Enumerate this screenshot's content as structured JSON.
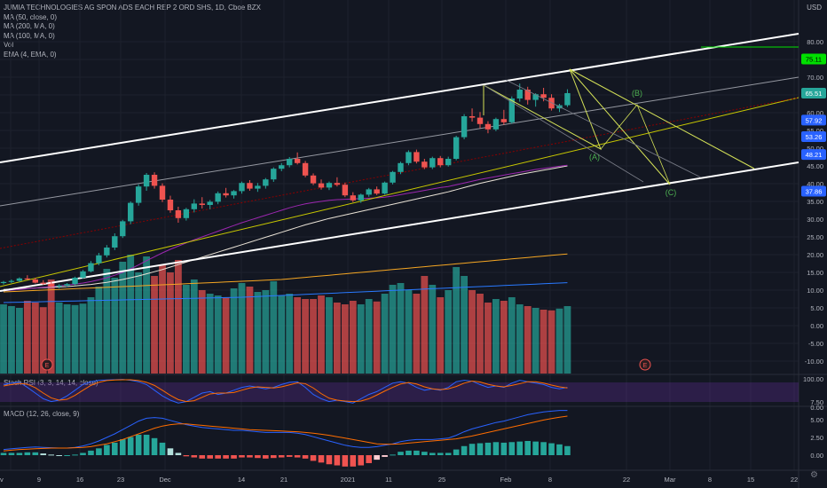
{
  "legend": {
    "title": "JUMIA TECHNOLOGIES AG SPON ADS EACH REP 2 ORD SHS, 1D, Cboe BZX",
    "indicators": [
      "MA (50, close, 0)",
      "MA (200, MA, 0)",
      "MA (100, MA, 0)",
      "Vol",
      "EMA (4, EMA, 0)"
    ]
  },
  "currency": "USD",
  "colors": {
    "up": "#26a69a",
    "down": "#ef5350",
    "bg": "#131722",
    "grid": "#1e222d",
    "axis_text": "#b2b5be"
  },
  "price_axis": {
    "ticks": [
      "80.00",
      "75.00",
      "70.00",
      "65.00",
      "60.00",
      "55.00",
      "50.00",
      "45.00",
      "40.00",
      "35.00",
      "30.00",
      "25.00",
      "20.00",
      "15.00",
      "10.00",
      "5.00",
      "0.00",
      "-5.00",
      "-10.00"
    ],
    "badges": [
      {
        "value": "75.11",
        "color": "#00e000",
        "text_color": "#000000"
      },
      {
        "value": "65.51",
        "color": "#26a69a",
        "text_color": "#ffffff"
      },
      {
        "value": "57.92",
        "color": "#2962ff",
        "text_color": "#ffffff"
      },
      {
        "value": "53.26",
        "color": "#2962ff",
        "text_color": "#ffffff"
      },
      {
        "value": "48.21",
        "color": "#2962ff",
        "text_color": "#ffffff"
      },
      {
        "value": "37.86",
        "color": "#2962ff",
        "text_color": "#ffffff"
      }
    ]
  },
  "stoch": {
    "label": "Stoch RSI (3, 3, 14, 14, close)",
    "ticks": [
      "100.00",
      "0.00"
    ]
  },
  "macd": {
    "label": "MACD (12, 26, close, 9)",
    "ticks": [
      "7.50",
      "5.00",
      "2.50",
      "0.00"
    ]
  },
  "time_axis": [
    "v",
    "9",
    "16",
    "23",
    "Dec",
    "14",
    "21",
    "2021",
    "11",
    "25",
    "Feb",
    "8",
    "22",
    "Mar",
    "8",
    "15",
    "22"
  ],
  "events": [
    "E",
    "E"
  ],
  "waves": [
    "(A)",
    "(B)",
    "(C)"
  ],
  "chart_data": {
    "type": "candlestick",
    "ohlc": [
      [
        12.0,
        12.6,
        11.6,
        12.3
      ],
      [
        12.3,
        13.0,
        12.0,
        12.6
      ],
      [
        12.6,
        13.6,
        12.3,
        13.3
      ],
      [
        13.3,
        14.2,
        12.9,
        13.0
      ],
      [
        13.0,
        13.5,
        11.9,
        12.1
      ],
      [
        12.1,
        12.8,
        11.5,
        11.8
      ],
      [
        11.8,
        12.4,
        10.8,
        11.0
      ],
      [
        11.0,
        11.7,
        10.5,
        11.3
      ],
      [
        11.3,
        12.0,
        10.9,
        11.7
      ],
      [
        11.7,
        13.8,
        11.4,
        13.5
      ],
      [
        13.5,
        15.7,
        13.2,
        15.3
      ],
      [
        15.3,
        18.2,
        15.0,
        17.6
      ],
      [
        17.6,
        20.5,
        17.0,
        19.8
      ],
      [
        19.8,
        22.7,
        19.2,
        22.0
      ],
      [
        22.0,
        26.0,
        21.3,
        25.2
      ],
      [
        25.2,
        29.8,
        24.7,
        29.4
      ],
      [
        29.4,
        35.0,
        28.6,
        34.6
      ],
      [
        34.6,
        39.8,
        33.8,
        39.2
      ],
      [
        39.2,
        43.0,
        38.0,
        42.5
      ],
      [
        42.5,
        43.2,
        38.6,
        39.4
      ],
      [
        39.4,
        40.1,
        34.8,
        35.5
      ],
      [
        35.5,
        36.6,
        31.8,
        32.5
      ],
      [
        32.5,
        33.5,
        29.0,
        30.3
      ],
      [
        30.3,
        33.2,
        29.6,
        32.8
      ],
      [
        32.8,
        35.6,
        31.9,
        34.4
      ],
      [
        34.4,
        36.2,
        33.0,
        34.0
      ],
      [
        34.0,
        35.4,
        32.8,
        34.9
      ],
      [
        34.9,
        37.8,
        34.2,
        37.3
      ],
      [
        37.3,
        38.8,
        36.1,
        36.7
      ],
      [
        36.7,
        38.2,
        35.8,
        37.9
      ],
      [
        37.9,
        40.6,
        37.2,
        40.2
      ],
      [
        40.2,
        41.0,
        38.0,
        38.6
      ],
      [
        38.6,
        40.2,
        37.7,
        39.4
      ],
      [
        39.4,
        41.6,
        38.6,
        41.2
      ],
      [
        41.2,
        44.6,
        40.5,
        44.2
      ],
      [
        44.2,
        45.8,
        43.5,
        45.2
      ],
      [
        45.2,
        47.5,
        44.6,
        47.0
      ],
      [
        47.0,
        48.8,
        45.4,
        45.8
      ],
      [
        45.8,
        46.4,
        41.8,
        42.3
      ],
      [
        42.3,
        42.9,
        39.6,
        40.1
      ],
      [
        40.1,
        41.2,
        38.3,
        38.9
      ],
      [
        38.9,
        40.6,
        38.2,
        40.2
      ],
      [
        40.2,
        41.8,
        39.2,
        39.7
      ],
      [
        39.7,
        40.3,
        36.2,
        36.7
      ],
      [
        36.7,
        37.6,
        34.8,
        35.3
      ],
      [
        35.3,
        37.2,
        34.6,
        36.9
      ],
      [
        36.9,
        38.8,
        36.3,
        38.4
      ],
      [
        38.4,
        39.2,
        36.8,
        37.2
      ],
      [
        37.2,
        40.6,
        36.9,
        40.3
      ],
      [
        40.3,
        43.6,
        39.8,
        43.3
      ],
      [
        43.3,
        46.2,
        42.7,
        45.8
      ],
      [
        45.8,
        49.4,
        45.2,
        48.9
      ],
      [
        48.9,
        49.6,
        45.7,
        46.2
      ],
      [
        46.2,
        47.0,
        44.1,
        44.6
      ],
      [
        44.6,
        47.6,
        44.1,
        47.2
      ],
      [
        47.2,
        47.8,
        44.6,
        45.2
      ],
      [
        45.2,
        47.6,
        44.8,
        47.0
      ],
      [
        47.0,
        53.5,
        46.6,
        53.1
      ],
      [
        53.1,
        59.6,
        52.5,
        59.0
      ],
      [
        59.0,
        61.2,
        57.5,
        58.6
      ],
      [
        58.6,
        60.2,
        55.6,
        56.8
      ],
      [
        56.8,
        57.6,
        54.2,
        55.3
      ],
      [
        55.3,
        58.6,
        54.8,
        58.2
      ],
      [
        58.2,
        60.8,
        56.6,
        57.3
      ],
      [
        57.3,
        64.6,
        56.9,
        64.0
      ],
      [
        64.0,
        68.2,
        63.1,
        66.5
      ],
      [
        66.5,
        67.3,
        62.3,
        63.6
      ],
      [
        63.6,
        65.5,
        61.7,
        65.2
      ],
      [
        65.2,
        67.0,
        63.2,
        64.2
      ],
      [
        64.2,
        65.2,
        60.6,
        61.2
      ],
      [
        61.2,
        62.5,
        60.2,
        62.1
      ],
      [
        62.1,
        66.6,
        61.6,
        65.51
      ]
    ],
    "volume": [
      4.0,
      3.5,
      3.0,
      5.0,
      4.5,
      3.2,
      11.0,
      4.5,
      4.0,
      3.8,
      4.2,
      6.0,
      9.0,
      14.0,
      11.5,
      16.0,
      18.0,
      13.0,
      17.5,
      12.0,
      15.0,
      13.0,
      16.5,
      9.5,
      11.0,
      8.0,
      7.0,
      6.5,
      6.0,
      8.5,
      10.0,
      9.0,
      7.5,
      8.0,
      10.5,
      6.5,
      7.0,
      6.0,
      5.5,
      5.5,
      6.5,
      6.0,
      4.5,
      4.0,
      5.0,
      4.0,
      5.5,
      4.8,
      7.0,
      9.5,
      10.0,
      8.0,
      7.0,
      12.0,
      9.5,
      6.0,
      8.0,
      14.5,
      12.0,
      8.0,
      7.0,
      4.5,
      5.5,
      5.0,
      6.0,
      4.0,
      3.5,
      3.0,
      2.5,
      2.3,
      2.8,
      3.5
    ],
    "ma_sets": {
      "ma50": [
        10.2,
        10.3,
        10.4,
        10.5,
        10.6,
        10.7,
        10.8,
        10.9,
        11.0,
        11.2,
        11.4,
        11.6,
        11.9,
        12.2,
        12.6,
        13.0,
        13.5,
        14.0,
        14.6,
        15.2,
        15.8,
        16.5,
        17.2,
        17.9,
        18.6,
        19.3,
        20.0,
        20.7,
        21.4,
        22.1,
        22.8,
        23.5,
        24.2,
        24.9,
        25.6,
        26.3,
        27.0,
        27.7,
        28.4,
        29.0,
        29.6,
        30.2,
        30.7,
        31.2,
        31.7,
        32.2,
        32.7,
        33.2,
        33.7,
        34.2,
        34.7,
        35.2,
        35.7,
        36.2,
        36.7,
        37.2,
        37.7,
        38.3,
        38.9,
        39.5,
        40.1,
        40.6,
        41.1,
        41.6,
        42.1,
        42.6,
        43.0,
        43.4,
        43.8,
        44.2,
        44.6,
        45.0
      ],
      "ma100": [
        9.5,
        9.6,
        9.7,
        9.8,
        9.9,
        10.0,
        10.1,
        10.2,
        10.3,
        10.4,
        10.5,
        10.6,
        10.7,
        10.8,
        10.9,
        11.0,
        11.1,
        11.2,
        11.3,
        11.4,
        11.5,
        11.6,
        11.7,
        11.8,
        11.9,
        12.0,
        12.1,
        12.2,
        12.3,
        12.4,
        12.5,
        12.6,
        12.7,
        12.8,
        12.9,
        13.0,
        13.2,
        13.4,
        13.6,
        13.8,
        14.0,
        14.2,
        14.4,
        14.6,
        14.8,
        15.0,
        15.2,
        15.4,
        15.6,
        15.8,
        16.0,
        16.2,
        16.4,
        16.6,
        16.8,
        17.0,
        17.2,
        17.4,
        17.6,
        17.8,
        18.0,
        18.2,
        18.4,
        18.6,
        18.8,
        19.0,
        19.2,
        19.4,
        19.6,
        19.8,
        20.0,
        20.2
      ],
      "ma200": [
        6.5,
        6.55,
        6.6,
        6.65,
        6.7,
        6.75,
        6.8,
        6.85,
        6.9,
        6.95,
        7.0,
        7.05,
        7.1,
        7.15,
        7.2,
        7.25,
        7.3,
        7.35,
        7.4,
        7.45,
        7.5,
        7.55,
        7.6,
        7.65,
        7.7,
        7.75,
        7.8,
        7.85,
        7.9,
        7.95,
        8.0,
        8.1,
        8.2,
        8.3,
        8.4,
        8.5,
        8.6,
        8.7,
        8.8,
        8.9,
        9.0,
        9.1,
        9.2,
        9.3,
        9.4,
        9.5,
        9.6,
        9.7,
        9.8,
        9.9,
        10.0,
        10.1,
        10.2,
        10.3,
        10.4,
        10.5,
        10.6,
        10.7,
        10.8,
        10.9,
        11.0,
        11.1,
        11.2,
        11.3,
        11.4,
        11.5,
        11.6,
        11.7,
        11.8,
        11.9,
        12.0,
        12.1
      ],
      "ema": [
        9.8,
        10.0,
        10.2,
        10.4,
        10.6,
        10.8,
        11.0,
        11.2,
        11.4,
        11.7,
        12.0,
        12.4,
        12.9,
        13.5,
        14.2,
        15.0,
        16.0,
        17.1,
        18.3,
        19.4,
        20.5,
        21.5,
        22.4,
        23.3,
        24.2,
        25.0,
        25.8,
        26.6,
        27.4,
        28.2,
        29.0,
        29.7,
        30.4,
        31.1,
        31.8,
        32.5,
        33.2,
        33.8,
        34.3,
        34.7,
        35.0,
        35.3,
        35.5,
        35.6,
        35.7,
        35.8,
        35.9,
        36.0,
        36.2,
        36.5,
        36.9,
        37.3,
        37.7,
        38.1,
        38.5,
        38.9,
        39.2,
        39.7,
        40.2,
        40.7,
        41.2,
        41.6,
        42.0,
        42.4,
        42.8,
        43.2,
        43.6,
        44.0,
        44.3,
        44.6,
        44.9,
        45.2
      ]
    },
    "macd": [
      0.8,
      0.9,
      1.0,
      1.1,
      1.15,
      1.1,
      1.05,
      1.0,
      1.0,
      1.1,
      1.3,
      1.6,
      2.0,
      2.5,
      3.0,
      3.6,
      4.2,
      4.8,
      5.2,
      5.3,
      5.2,
      4.9,
      4.6,
      4.3,
      4.1,
      3.9,
      3.8,
      3.7,
      3.6,
      3.5,
      3.5,
      3.4,
      3.3,
      3.2,
      3.2,
      3.2,
      3.2,
      3.1,
      2.9,
      2.6,
      2.3,
      2.0,
      1.7,
      1.4,
      1.2,
      1.1,
      1.1,
      1.2,
      1.4,
      1.6,
      1.9,
      2.1,
      2.2,
      2.2,
      2.2,
      2.3,
      2.4,
      2.8,
      3.3,
      3.7,
      4.0,
      4.3,
      4.6,
      4.8,
      5.1,
      5.4,
      5.7,
      5.9,
      6.1,
      6.2,
      6.3,
      6.3
    ],
    "signal": [
      0.6,
      0.7,
      0.8,
      0.85,
      0.9,
      0.95,
      1.0,
      1.0,
      1.0,
      1.05,
      1.1,
      1.2,
      1.4,
      1.6,
      1.9,
      2.2,
      2.6,
      3.0,
      3.4,
      3.8,
      4.1,
      4.3,
      4.4,
      4.4,
      4.3,
      4.2,
      4.1,
      4.0,
      3.9,
      3.8,
      3.7,
      3.6,
      3.55,
      3.5,
      3.45,
      3.4,
      3.35,
      3.3,
      3.2,
      3.1,
      2.95,
      2.8,
      2.6,
      2.4,
      2.2,
      2.0,
      1.8,
      1.6,
      1.55,
      1.55,
      1.6,
      1.7,
      1.8,
      1.9,
      2.0,
      2.1,
      2.2,
      2.3,
      2.5,
      2.7,
      2.95,
      3.2,
      3.45,
      3.7,
      3.95,
      4.2,
      4.45,
      4.7,
      4.95,
      5.15,
      5.35,
      5.5
    ],
    "stoch_k": [
      80,
      85,
      88,
      70,
      50,
      30,
      20,
      25,
      40,
      60,
      80,
      90,
      95,
      96,
      97,
      98,
      95,
      90,
      80,
      60,
      40,
      25,
      15,
      20,
      35,
      50,
      55,
      45,
      50,
      60,
      70,
      75,
      70,
      65,
      70,
      80,
      88,
      90,
      70,
      45,
      30,
      20,
      25,
      20,
      15,
      30,
      45,
      55,
      70,
      85,
      90,
      85,
      70,
      60,
      65,
      60,
      70,
      90,
      95,
      92,
      80,
      70,
      75,
      70,
      85,
      95,
      90,
      85,
      80,
      70,
      65,
      70
    ],
    "stoch_d": [
      75,
      80,
      84,
      81,
      69,
      50,
      33,
      25,
      28,
      42,
      60,
      77,
      88,
      94,
      96,
      97,
      97,
      94,
      88,
      77,
      60,
      42,
      27,
      20,
      23,
      35,
      47,
      50,
      50,
      52,
      60,
      68,
      72,
      70,
      68,
      72,
      79,
      86,
      83,
      68,
      48,
      32,
      25,
      22,
      20,
      22,
      30,
      43,
      57,
      70,
      82,
      87,
      82,
      72,
      65,
      62,
      65,
      73,
      85,
      92,
      89,
      81,
      75,
      72,
      77,
      83,
      90,
      90,
      85,
      78,
      72,
      68
    ]
  }
}
